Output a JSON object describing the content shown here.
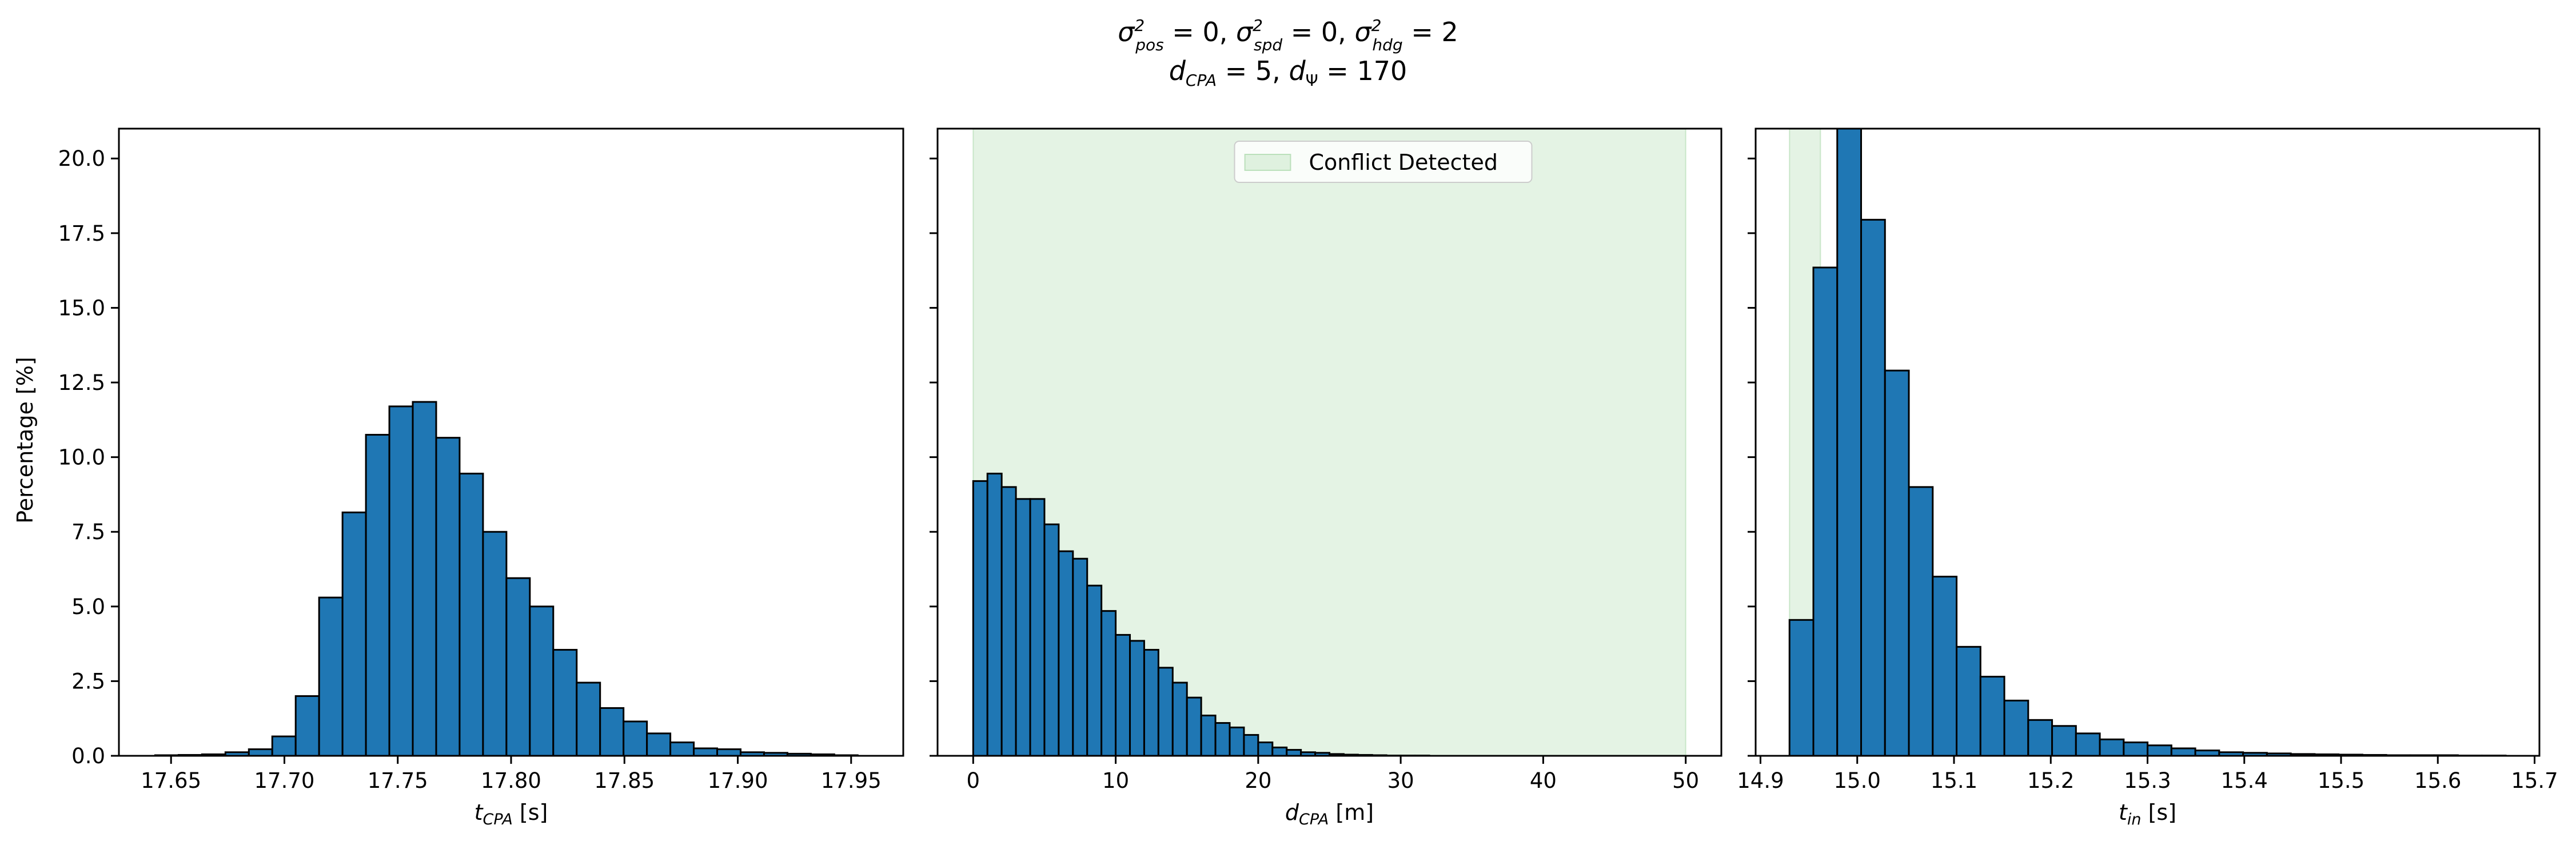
{
  "figure": {
    "title_line1": "σ²pos = 0, σ²spd = 0, σ²hdg = 2",
    "title_line2": "dCPA = 5, dΨ = 170",
    "ylabel": "Percentage [%]",
    "bar_color": "#1f77b4",
    "shade_color": "#2ca02c"
  },
  "chart_data": [
    {
      "type": "bar",
      "name": "tCPA histogram",
      "xlabel_main": "t",
      "xlabel_sub": "CPA",
      "xlabel_unit": " [s]",
      "xlim": [
        17.627,
        17.973
      ],
      "ylim": [
        0,
        21
      ],
      "yticks": [
        0,
        2.5,
        5,
        7.5,
        10,
        12.5,
        15,
        17.5,
        20
      ],
      "ytick_labels": [
        "0.0",
        "2.5",
        "5.0",
        "7.5",
        "10.0",
        "12.5",
        "15.0",
        "17.5",
        "20.0"
      ],
      "xticks": [
        17.65,
        17.7,
        17.75,
        17.8,
        17.85,
        17.9,
        17.95
      ],
      "xtick_labels": [
        "17.65",
        "17.70",
        "17.75",
        "17.80",
        "17.85",
        "17.90",
        "17.95"
      ],
      "bin_start": 17.643,
      "bin_width": 0.01033,
      "values": [
        0.02,
        0.03,
        0.05,
        0.12,
        0.22,
        0.65,
        2.0,
        5.3,
        8.15,
        10.75,
        11.7,
        11.85,
        10.65,
        9.45,
        7.5,
        5.95,
        5.0,
        3.55,
        2.45,
        1.6,
        1.15,
        0.75,
        0.45,
        0.25,
        0.22,
        0.12,
        0.1,
        0.07,
        0.05,
        0.02
      ],
      "shaded": null,
      "legend": null
    },
    {
      "type": "bar",
      "name": "dCPA histogram",
      "xlabel_main": "d",
      "xlabel_sub": "CPA",
      "xlabel_unit": " [m]",
      "xlim": [
        -2.5,
        52.5
      ],
      "ylim": [
        0,
        21
      ],
      "yticks": [
        0,
        2.5,
        5,
        7.5,
        10,
        12.5,
        15,
        17.5,
        20
      ],
      "ytick_labels": [],
      "xticks": [
        0,
        10,
        20,
        30,
        40,
        50
      ],
      "xtick_labels": [
        "0",
        "10",
        "20",
        "30",
        "40",
        "50"
      ],
      "bin_start": 0,
      "bin_width": 1.0,
      "values": [
        9.2,
        9.45,
        9.0,
        8.6,
        8.6,
        7.75,
        6.85,
        6.6,
        5.7,
        4.85,
        4.05,
        3.85,
        3.55,
        2.95,
        2.45,
        1.95,
        1.35,
        1.1,
        0.95,
        0.7,
        0.45,
        0.28,
        0.2,
        0.12,
        0.1,
        0.06,
        0.04,
        0.03,
        0.02,
        0.01,
        0.01,
        0.01
      ],
      "shaded": [
        0,
        50
      ],
      "legend": "Conflict Detected"
    },
    {
      "type": "bar",
      "name": "tin histogram",
      "xlabel_main": "t",
      "xlabel_sub": "in",
      "xlabel_unit": " [s]",
      "xlim": [
        14.895,
        15.705
      ],
      "ylim": [
        0,
        21
      ],
      "yticks": [
        0,
        2.5,
        5,
        7.5,
        10,
        12.5,
        15,
        17.5,
        20
      ],
      "ytick_labels": [],
      "xticks": [
        14.9,
        15.0,
        15.1,
        15.2,
        15.3,
        15.4,
        15.5,
        15.6,
        15.7
      ],
      "xtick_labels": [
        "14.9",
        "15.0",
        "15.1",
        "15.2",
        "15.3",
        "15.4",
        "15.5",
        "15.6",
        "15.7"
      ],
      "bin_start": 14.93,
      "bin_width": 0.02467,
      "values": [
        4.55,
        16.35,
        21.5,
        17.95,
        12.9,
        9.0,
        6.0,
        3.65,
        2.65,
        1.85,
        1.2,
        1.0,
        0.75,
        0.55,
        0.45,
        0.35,
        0.25,
        0.18,
        0.12,
        0.1,
        0.08,
        0.06,
        0.05,
        0.04,
        0.03,
        0.02,
        0.02,
        0.02,
        0.01,
        0.01
      ],
      "shaded": [
        14.93,
        14.962
      ],
      "legend": null
    }
  ]
}
